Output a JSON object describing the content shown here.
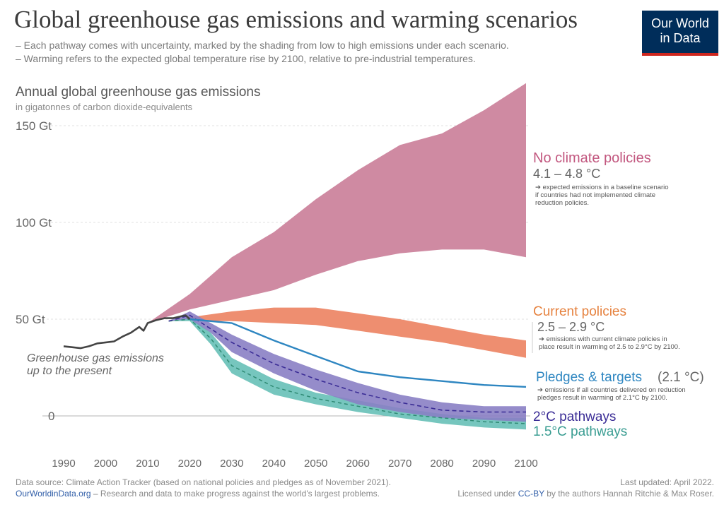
{
  "header": {
    "title": "Global greenhouse gas emissions and warming scenarios",
    "subtitle_1": "– Each pathway comes with uncertainty, marked by the shading from low to high emissions under each scenario.",
    "subtitle_2": "– Warming refers to the expected global temperature rise by 2100, relative to pre-industrial temperatures.",
    "logo_line_1": "Our World",
    "logo_line_2": "in Data"
  },
  "footer": {
    "source": "Data source: Climate Action Tracker (based on national policies and pledges as of November 2021).",
    "site": "OurWorldinData.org",
    "tagline": " – Research and data to make progress against the world's largest problems.",
    "updated": "Last updated: April 2022.",
    "license_prefix": "Licensed under ",
    "license": "CC-BY",
    "license_suffix": " by the authors Hannah Ritchie & Max Roser."
  },
  "chart_data": {
    "type": "area",
    "title": "Annual global greenhouse gas emissions",
    "subtitle": "in gigatonnes of carbon dioxide-equivalents",
    "xlim": [
      1990,
      2100
    ],
    "ylim": [
      -10,
      155
    ],
    "x_ticks": [
      "1990",
      "2000",
      "2010",
      "2020",
      "2030",
      "2040",
      "2050",
      "2060",
      "2070",
      "2080",
      "2090",
      "2100"
    ],
    "y_ticks": [
      {
        "value": 0,
        "label": "0"
      },
      {
        "value": 50,
        "label": "50 Gt"
      },
      {
        "value": 100,
        "label": "100 Gt"
      },
      {
        "value": 150,
        "label": "150 Gt"
      }
    ],
    "historical": {
      "label": "Greenhouse gas emissions up to the present",
      "label_line_1": "Greenhouse gas emissions",
      "label_line_2": "up to the present",
      "color": "#444444",
      "x": [
        1990,
        1992,
        1994,
        1996,
        1998,
        2000,
        2002,
        2004,
        2006,
        2008,
        2009,
        2010,
        2012,
        2014,
        2016,
        2018,
        2019,
        2020
      ],
      "y": [
        36,
        35.5,
        35,
        36,
        37.5,
        38,
        38.5,
        41,
        43,
        46,
        44,
        48,
        49.5,
        50.5,
        50.5,
        51.5,
        52,
        50
      ]
    },
    "series": [
      {
        "name": "No climate policies",
        "warming": "4.1 – 4.8 °C",
        "note": "expected emissions in a baseline scenario if countries had not implemented climate reduction policies.",
        "note_lines": [
          "expected emissions in a baseline scenario",
          "if countries had not implemented climate",
          "reduction policies."
        ],
        "color": "#c2577f",
        "fill": "#cf8aa2",
        "x": [
          2010,
          2020,
          2030,
          2040,
          2050,
          2060,
          2070,
          2080,
          2090,
          2100
        ],
        "low": [
          48,
          55,
          60,
          65,
          73,
          80,
          84,
          86,
          86,
          82
        ],
        "high": [
          48,
          63,
          82,
          95,
          112,
          127,
          140,
          146,
          158,
          172
        ]
      },
      {
        "name": "Current policies",
        "warming": "2.5 – 2.9 °C",
        "note": "emissions with current climate policies in place result in warming of 2.5 to 2.9°C by 2100.",
        "note_lines": [
          "emissions with current climate policies in",
          "place result in warming of 2.5 to 2.9°C by 2100."
        ],
        "color": "#e6823f",
        "fill": "#ee8e70",
        "x": [
          2020,
          2030,
          2040,
          2050,
          2060,
          2070,
          2080,
          2090,
          2100
        ],
        "low": [
          49,
          49,
          48,
          47,
          44,
          41,
          38,
          34,
          30
        ],
        "high": [
          51,
          54,
          56,
          56,
          53,
          50,
          46,
          42,
          39
        ]
      },
      {
        "name": "Pledges & targets",
        "warming": "(2.1 °C)",
        "note": "emissions if all countries delivered on reduction pledges result in warming of 2.1°C by 2100.",
        "note_lines": [
          "emissions if all countries delivered on reduction",
          "pledges result in warming of 2.1°C by 2100."
        ],
        "color": "#2e86c1",
        "x": [
          2020,
          2030,
          2040,
          2050,
          2060,
          2070,
          2080,
          2090,
          2100
        ],
        "y": [
          50,
          48,
          39,
          31,
          23,
          20,
          18,
          16,
          15
        ]
      },
      {
        "name": "2°C pathways",
        "color": "#5145a8",
        "fill": "#8a7fc4",
        "x": [
          2015,
          2020,
          2025,
          2030,
          2040,
          2050,
          2060,
          2070,
          2080,
          2090,
          2100
        ],
        "low": [
          49,
          50,
          43,
          33,
          22,
          13,
          6,
          2,
          -1,
          -2,
          -3
        ],
        "mid": [
          49,
          52,
          45,
          38,
          27,
          19,
          12,
          7,
          3,
          2,
          2
        ],
        "high": [
          49,
          54,
          48,
          42,
          32,
          24,
          17,
          11,
          7,
          5,
          5
        ]
      },
      {
        "name": "1.5°C pathways",
        "color": "#4aaea8",
        "fill": "#6fc3bb",
        "x": [
          2015,
          2020,
          2025,
          2030,
          2040,
          2050,
          2060,
          2070,
          2080,
          2090,
          2100
        ],
        "low": [
          49,
          49,
          37,
          22,
          11,
          6,
          2,
          -1,
          -4,
          -6,
          -7
        ],
        "mid": [
          49,
          50,
          40,
          26,
          15,
          9,
          5,
          1,
          -1,
          -3,
          -4
        ],
        "high": [
          49,
          51,
          43,
          30,
          19,
          12,
          8,
          4,
          1,
          -1,
          -1
        ]
      }
    ]
  }
}
